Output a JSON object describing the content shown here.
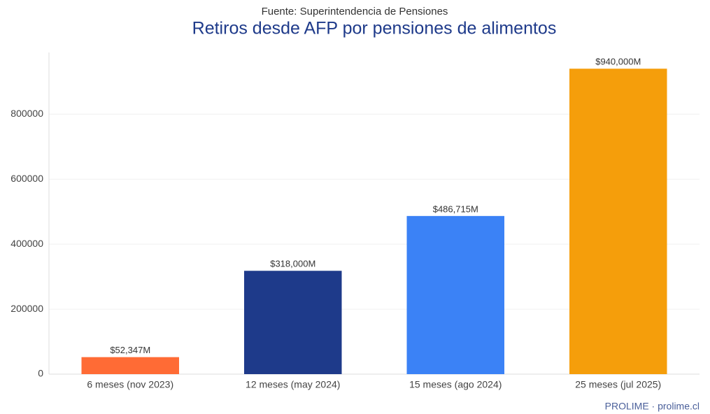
{
  "chart_data": {
    "type": "bar",
    "subtitle": "Fuente: Superintendencia de Pensiones",
    "title": "Retiros desde AFP por pensiones de alimentos",
    "categories": [
      "6 meses (nov 2023)",
      "12 meses (may 2024)",
      "15 meses (ago 2024)",
      "25 meses (jul 2025)"
    ],
    "values": [
      52347,
      318000,
      486715,
      940000
    ],
    "value_labels": [
      "$52,347M",
      "$318,000M",
      "$486,715M",
      "$940,000M"
    ],
    "colors": [
      "#ff6b35",
      "#1e3a8a",
      "#3b82f6",
      "#f59e0b"
    ],
    "ylim": [
      0,
      990000
    ],
    "yticks": [
      0,
      200000,
      400000,
      600000,
      800000
    ],
    "grid": true,
    "footer": "PROLIME · prolime.cl"
  }
}
